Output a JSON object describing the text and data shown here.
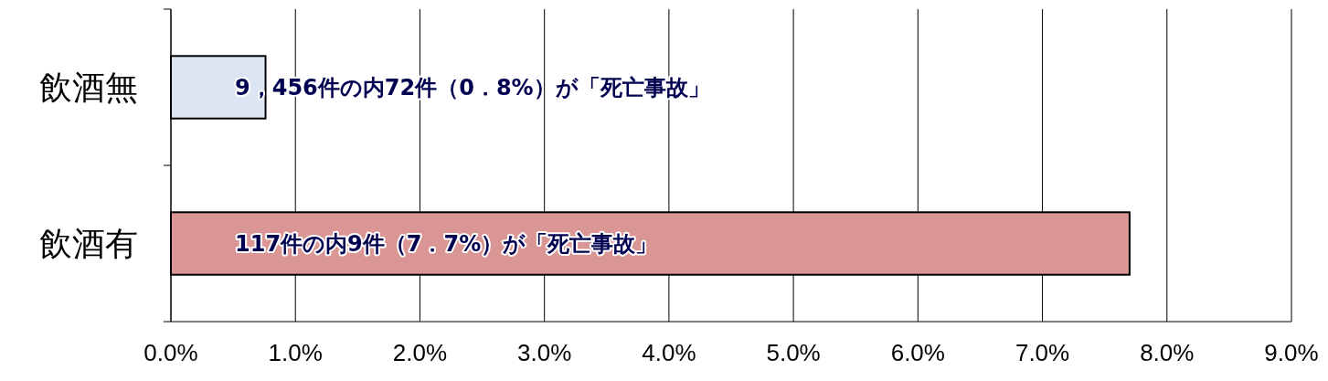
{
  "chart_data": {
    "type": "bar",
    "orientation": "horizontal",
    "categories": [
      "飲酒無",
      "飲酒有"
    ],
    "values": [
      0.76,
      7.7
    ],
    "colors": [
      "#dce6f2",
      "#d99694"
    ],
    "annotations": [
      "9，456件の内72件（0．8%）が「死亡事故」",
      "117件の内9件（7．7%）が「死亡事故」"
    ],
    "xlim": [
      0,
      9
    ],
    "xticks": [
      {
        "value": 0,
        "label": "0.0%"
      },
      {
        "value": 1,
        "label": "1.0%"
      },
      {
        "value": 2,
        "label": "2.0%"
      },
      {
        "value": 3,
        "label": "3.0%"
      },
      {
        "value": 4,
        "label": "4.0%"
      },
      {
        "value": 5,
        "label": "5.0%"
      },
      {
        "value": 6,
        "label": "6.0%"
      },
      {
        "value": 7,
        "label": "7.0%"
      },
      {
        "value": 8,
        "label": "8.0%"
      },
      {
        "value": 9,
        "label": "9.0%"
      }
    ],
    "grid": "x"
  }
}
